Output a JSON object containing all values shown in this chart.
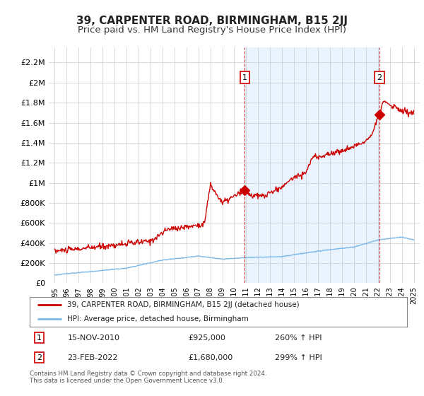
{
  "title": "39, CARPENTER ROAD, BIRMINGHAM, B15 2JJ",
  "subtitle": "Price paid vs. HM Land Registry's House Price Index (HPI)",
  "ylabel_ticks": [
    0,
    200000,
    400000,
    600000,
    800000,
    1000000,
    1200000,
    1400000,
    1600000,
    1800000,
    2000000,
    2200000
  ],
  "ylabel_labels": [
    "£0",
    "£200K",
    "£400K",
    "£600K",
    "£800K",
    "£1M",
    "£1.2M",
    "£1.4M",
    "£1.6M",
    "£1.8M",
    "£2M",
    "£2.2M"
  ],
  "ylim": [
    0,
    2350000
  ],
  "xlim_start": 1994.5,
  "xlim_end": 2025.5,
  "hpi_line_color": "#7ab8e8",
  "price_line_color": "#cc0000",
  "shade_color": "#ddeeff",
  "dashed_color": "#cc0000",
  "point1_x": 2010.88,
  "point1_y": 925000,
  "point1_label": "1",
  "point2_x": 2022.12,
  "point2_y": 1680000,
  "point2_label": "2",
  "legend_line1": "39, CARPENTER ROAD, BIRMINGHAM, B15 2JJ (detached house)",
  "legend_line2": "HPI: Average price, detached house, Birmingham",
  "annotation1_date": "15-NOV-2010",
  "annotation1_price": "£925,000",
  "annotation1_hpi": "260% ↑ HPI",
  "annotation2_date": "23-FEB-2022",
  "annotation2_price": "£1,680,000",
  "annotation2_hpi": "299% ↑ HPI",
  "footer": "Contains HM Land Registry data © Crown copyright and database right 2024.\nThis data is licensed under the Open Government Licence v3.0.",
  "background_color": "#ffffff",
  "grid_color": "#cccccc",
  "title_fontsize": 11,
  "subtitle_fontsize": 9.5
}
